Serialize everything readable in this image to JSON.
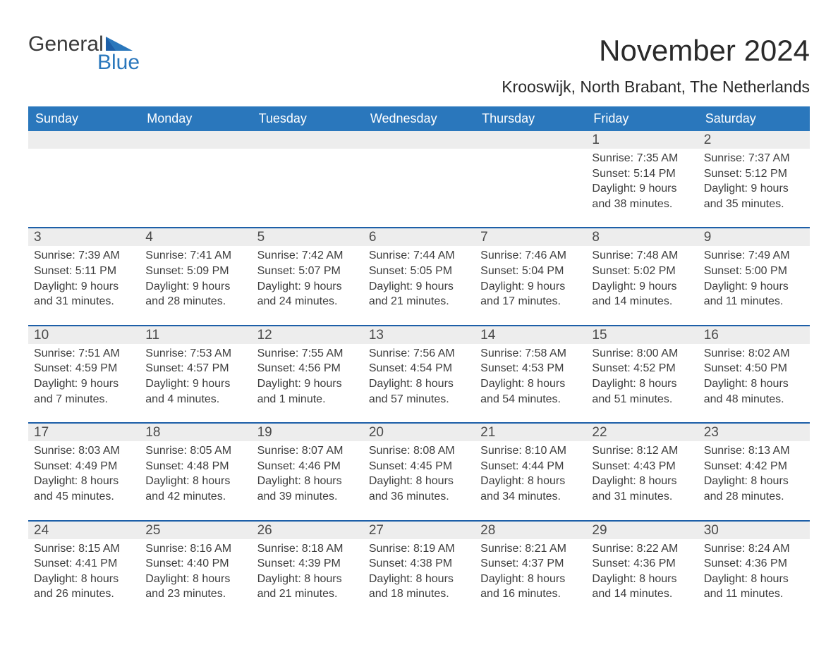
{
  "logo": {
    "word1": "General",
    "word2": "Blue"
  },
  "title": "November 2024",
  "subtitle": "Krooswijk, North Brabant, The Netherlands",
  "colors": {
    "header_blue": "#2a77bc",
    "accent_blue": "#1d5fa8",
    "row_grey": "#ededed",
    "background": "#ffffff",
    "text": "#3a3a3a"
  },
  "layout": {
    "columns": 7,
    "weeks": 5,
    "first_day_column_index": 5
  },
  "days_of_week": [
    "Sunday",
    "Monday",
    "Tuesday",
    "Wednesday",
    "Thursday",
    "Friday",
    "Saturday"
  ],
  "weeks": [
    [
      null,
      null,
      null,
      null,
      null,
      {
        "n": "1",
        "sunrise": "Sunrise: 7:35 AM",
        "sunset": "Sunset: 5:14 PM",
        "dl1": "Daylight: 9 hours",
        "dl2": "and 38 minutes."
      },
      {
        "n": "2",
        "sunrise": "Sunrise: 7:37 AM",
        "sunset": "Sunset: 5:12 PM",
        "dl1": "Daylight: 9 hours",
        "dl2": "and 35 minutes."
      }
    ],
    [
      {
        "n": "3",
        "sunrise": "Sunrise: 7:39 AM",
        "sunset": "Sunset: 5:11 PM",
        "dl1": "Daylight: 9 hours",
        "dl2": "and 31 minutes."
      },
      {
        "n": "4",
        "sunrise": "Sunrise: 7:41 AM",
        "sunset": "Sunset: 5:09 PM",
        "dl1": "Daylight: 9 hours",
        "dl2": "and 28 minutes."
      },
      {
        "n": "5",
        "sunrise": "Sunrise: 7:42 AM",
        "sunset": "Sunset: 5:07 PM",
        "dl1": "Daylight: 9 hours",
        "dl2": "and 24 minutes."
      },
      {
        "n": "6",
        "sunrise": "Sunrise: 7:44 AM",
        "sunset": "Sunset: 5:05 PM",
        "dl1": "Daylight: 9 hours",
        "dl2": "and 21 minutes."
      },
      {
        "n": "7",
        "sunrise": "Sunrise: 7:46 AM",
        "sunset": "Sunset: 5:04 PM",
        "dl1": "Daylight: 9 hours",
        "dl2": "and 17 minutes."
      },
      {
        "n": "8",
        "sunrise": "Sunrise: 7:48 AM",
        "sunset": "Sunset: 5:02 PM",
        "dl1": "Daylight: 9 hours",
        "dl2": "and 14 minutes."
      },
      {
        "n": "9",
        "sunrise": "Sunrise: 7:49 AM",
        "sunset": "Sunset: 5:00 PM",
        "dl1": "Daylight: 9 hours",
        "dl2": "and 11 minutes."
      }
    ],
    [
      {
        "n": "10",
        "sunrise": "Sunrise: 7:51 AM",
        "sunset": "Sunset: 4:59 PM",
        "dl1": "Daylight: 9 hours",
        "dl2": "and 7 minutes."
      },
      {
        "n": "11",
        "sunrise": "Sunrise: 7:53 AM",
        "sunset": "Sunset: 4:57 PM",
        "dl1": "Daylight: 9 hours",
        "dl2": "and 4 minutes."
      },
      {
        "n": "12",
        "sunrise": "Sunrise: 7:55 AM",
        "sunset": "Sunset: 4:56 PM",
        "dl1": "Daylight: 9 hours",
        "dl2": "and 1 minute."
      },
      {
        "n": "13",
        "sunrise": "Sunrise: 7:56 AM",
        "sunset": "Sunset: 4:54 PM",
        "dl1": "Daylight: 8 hours",
        "dl2": "and 57 minutes."
      },
      {
        "n": "14",
        "sunrise": "Sunrise: 7:58 AM",
        "sunset": "Sunset: 4:53 PM",
        "dl1": "Daylight: 8 hours",
        "dl2": "and 54 minutes."
      },
      {
        "n": "15",
        "sunrise": "Sunrise: 8:00 AM",
        "sunset": "Sunset: 4:52 PM",
        "dl1": "Daylight: 8 hours",
        "dl2": "and 51 minutes."
      },
      {
        "n": "16",
        "sunrise": "Sunrise: 8:02 AM",
        "sunset": "Sunset: 4:50 PM",
        "dl1": "Daylight: 8 hours",
        "dl2": "and 48 minutes."
      }
    ],
    [
      {
        "n": "17",
        "sunrise": "Sunrise: 8:03 AM",
        "sunset": "Sunset: 4:49 PM",
        "dl1": "Daylight: 8 hours",
        "dl2": "and 45 minutes."
      },
      {
        "n": "18",
        "sunrise": "Sunrise: 8:05 AM",
        "sunset": "Sunset: 4:48 PM",
        "dl1": "Daylight: 8 hours",
        "dl2": "and 42 minutes."
      },
      {
        "n": "19",
        "sunrise": "Sunrise: 8:07 AM",
        "sunset": "Sunset: 4:46 PM",
        "dl1": "Daylight: 8 hours",
        "dl2": "and 39 minutes."
      },
      {
        "n": "20",
        "sunrise": "Sunrise: 8:08 AM",
        "sunset": "Sunset: 4:45 PM",
        "dl1": "Daylight: 8 hours",
        "dl2": "and 36 minutes."
      },
      {
        "n": "21",
        "sunrise": "Sunrise: 8:10 AM",
        "sunset": "Sunset: 4:44 PM",
        "dl1": "Daylight: 8 hours",
        "dl2": "and 34 minutes."
      },
      {
        "n": "22",
        "sunrise": "Sunrise: 8:12 AM",
        "sunset": "Sunset: 4:43 PM",
        "dl1": "Daylight: 8 hours",
        "dl2": "and 31 minutes."
      },
      {
        "n": "23",
        "sunrise": "Sunrise: 8:13 AM",
        "sunset": "Sunset: 4:42 PM",
        "dl1": "Daylight: 8 hours",
        "dl2": "and 28 minutes."
      }
    ],
    [
      {
        "n": "24",
        "sunrise": "Sunrise: 8:15 AM",
        "sunset": "Sunset: 4:41 PM",
        "dl1": "Daylight: 8 hours",
        "dl2": "and 26 minutes."
      },
      {
        "n": "25",
        "sunrise": "Sunrise: 8:16 AM",
        "sunset": "Sunset: 4:40 PM",
        "dl1": "Daylight: 8 hours",
        "dl2": "and 23 minutes."
      },
      {
        "n": "26",
        "sunrise": "Sunrise: 8:18 AM",
        "sunset": "Sunset: 4:39 PM",
        "dl1": "Daylight: 8 hours",
        "dl2": "and 21 minutes."
      },
      {
        "n": "27",
        "sunrise": "Sunrise: 8:19 AM",
        "sunset": "Sunset: 4:38 PM",
        "dl1": "Daylight: 8 hours",
        "dl2": "and 18 minutes."
      },
      {
        "n": "28",
        "sunrise": "Sunrise: 8:21 AM",
        "sunset": "Sunset: 4:37 PM",
        "dl1": "Daylight: 8 hours",
        "dl2": "and 16 minutes."
      },
      {
        "n": "29",
        "sunrise": "Sunrise: 8:22 AM",
        "sunset": "Sunset: 4:36 PM",
        "dl1": "Daylight: 8 hours",
        "dl2": "and 14 minutes."
      },
      {
        "n": "30",
        "sunrise": "Sunrise: 8:24 AM",
        "sunset": "Sunset: 4:36 PM",
        "dl1": "Daylight: 8 hours",
        "dl2": "and 11 minutes."
      }
    ]
  ]
}
